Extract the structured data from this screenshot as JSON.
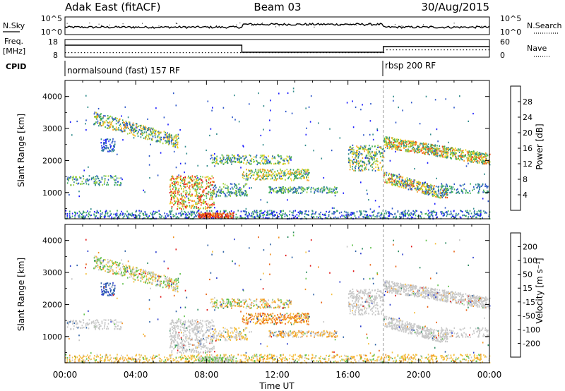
{
  "header": {
    "station": "Adak East (fitACF)",
    "beam": "Beam 03",
    "date": "30/Aug/2015"
  },
  "strips": {
    "nsky_label": "N.Sky",
    "nsearch_label": "N.Search",
    "freq_label_1": "Freq.",
    "freq_label_2": "[MHz]",
    "nave_label": "Nave",
    "cpid_label": "CPID",
    "left_ticks_top": [
      "10^5",
      "10^0"
    ],
    "right_ticks_top": [
      "10^5",
      "10^0"
    ],
    "freq_ticks": [
      "18",
      "8"
    ],
    "nave_ticks": [
      "60",
      "0"
    ],
    "cpid_entries": [
      {
        "label": "normalsound (fast) 157 RF",
        "start_hour": 0
      },
      {
        "label": "rbsp 200 RF",
        "start_hour": 18
      }
    ]
  },
  "chart_data": [
    {
      "type": "heatmap",
      "name": "power-panel",
      "ylabel": "Slant Range [km]",
      "xlabel": "",
      "ylim": [
        180,
        4500
      ],
      "xlim": [
        0,
        24
      ],
      "yticks": [
        "1000",
        "2000",
        "3000",
        "4000"
      ],
      "colorbar": {
        "label": "Power [dB]",
        "ticks": [
          "4",
          "8",
          "12",
          "16",
          "20",
          "24",
          "28"
        ],
        "range": [
          0,
          30
        ],
        "colors": [
          "#1a1aff",
          "#2b55c8",
          "#2f8a8a",
          "#3fae5a",
          "#9fd23c",
          "#f0d020",
          "#f59a1e",
          "#ee4d1a",
          "#e01010"
        ]
      }
    },
    {
      "type": "heatmap",
      "name": "velocity-panel",
      "ylabel": "Slant Range [km]",
      "xlabel": "Time UT",
      "ylim": [
        180,
        4500
      ],
      "xlim": [
        0,
        24
      ],
      "yticks": [
        "1000",
        "2000",
        "3000",
        "4000"
      ],
      "xticks": [
        "00:00",
        "04:00",
        "08:00",
        "12:00",
        "16:00",
        "20:00",
        "00:00"
      ],
      "colorbar": {
        "label": "Velocity [m s⁻¹]",
        "ticks": [
          "200",
          "100",
          "50",
          "15",
          "-15",
          "-50",
          "-100",
          "-200"
        ],
        "colors": [
          "#2a3ccc",
          "#2e62a6",
          "#2c8a60",
          "#5fc04a",
          "#c8c8c8",
          "#f5c040",
          "#f09020",
          "#e86010",
          "#e01818"
        ]
      }
    }
  ]
}
